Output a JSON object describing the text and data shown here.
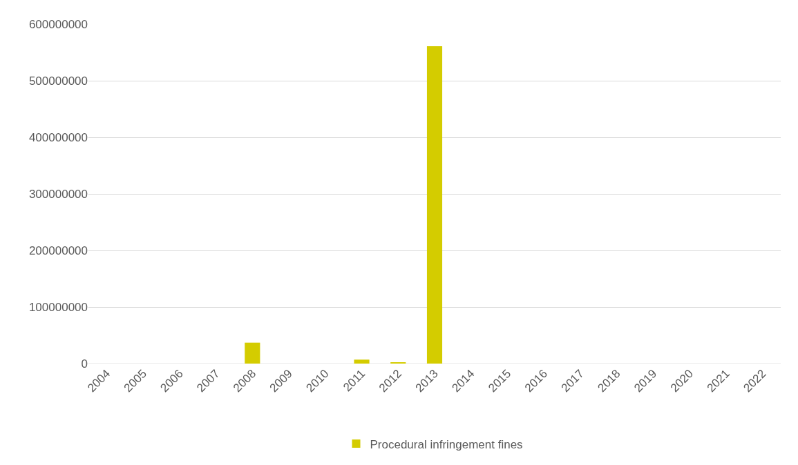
{
  "chart_data": {
    "type": "bar",
    "categories": [
      "2004",
      "2005",
      "2006",
      "2007",
      "2008",
      "2009",
      "2010",
      "2011",
      "2012",
      "2013",
      "2014",
      "2015",
      "2016",
      "2017",
      "2018",
      "2019",
      "2020",
      "2021",
      "2022"
    ],
    "series": [
      {
        "name": "Procedural infringement fines",
        "color": "#d4cc00",
        "values": [
          0,
          0,
          0,
          0,
          37000000,
          0,
          0,
          7000000,
          2000000,
          561000000,
          0,
          0,
          0,
          0,
          0,
          0,
          0,
          0,
          0
        ]
      }
    ],
    "ylim": [
      0,
      600000000
    ],
    "yticks": [
      0,
      100000000,
      200000000,
      300000000,
      400000000,
      500000000,
      600000000
    ],
    "grid": "y",
    "legend": "bottom"
  }
}
